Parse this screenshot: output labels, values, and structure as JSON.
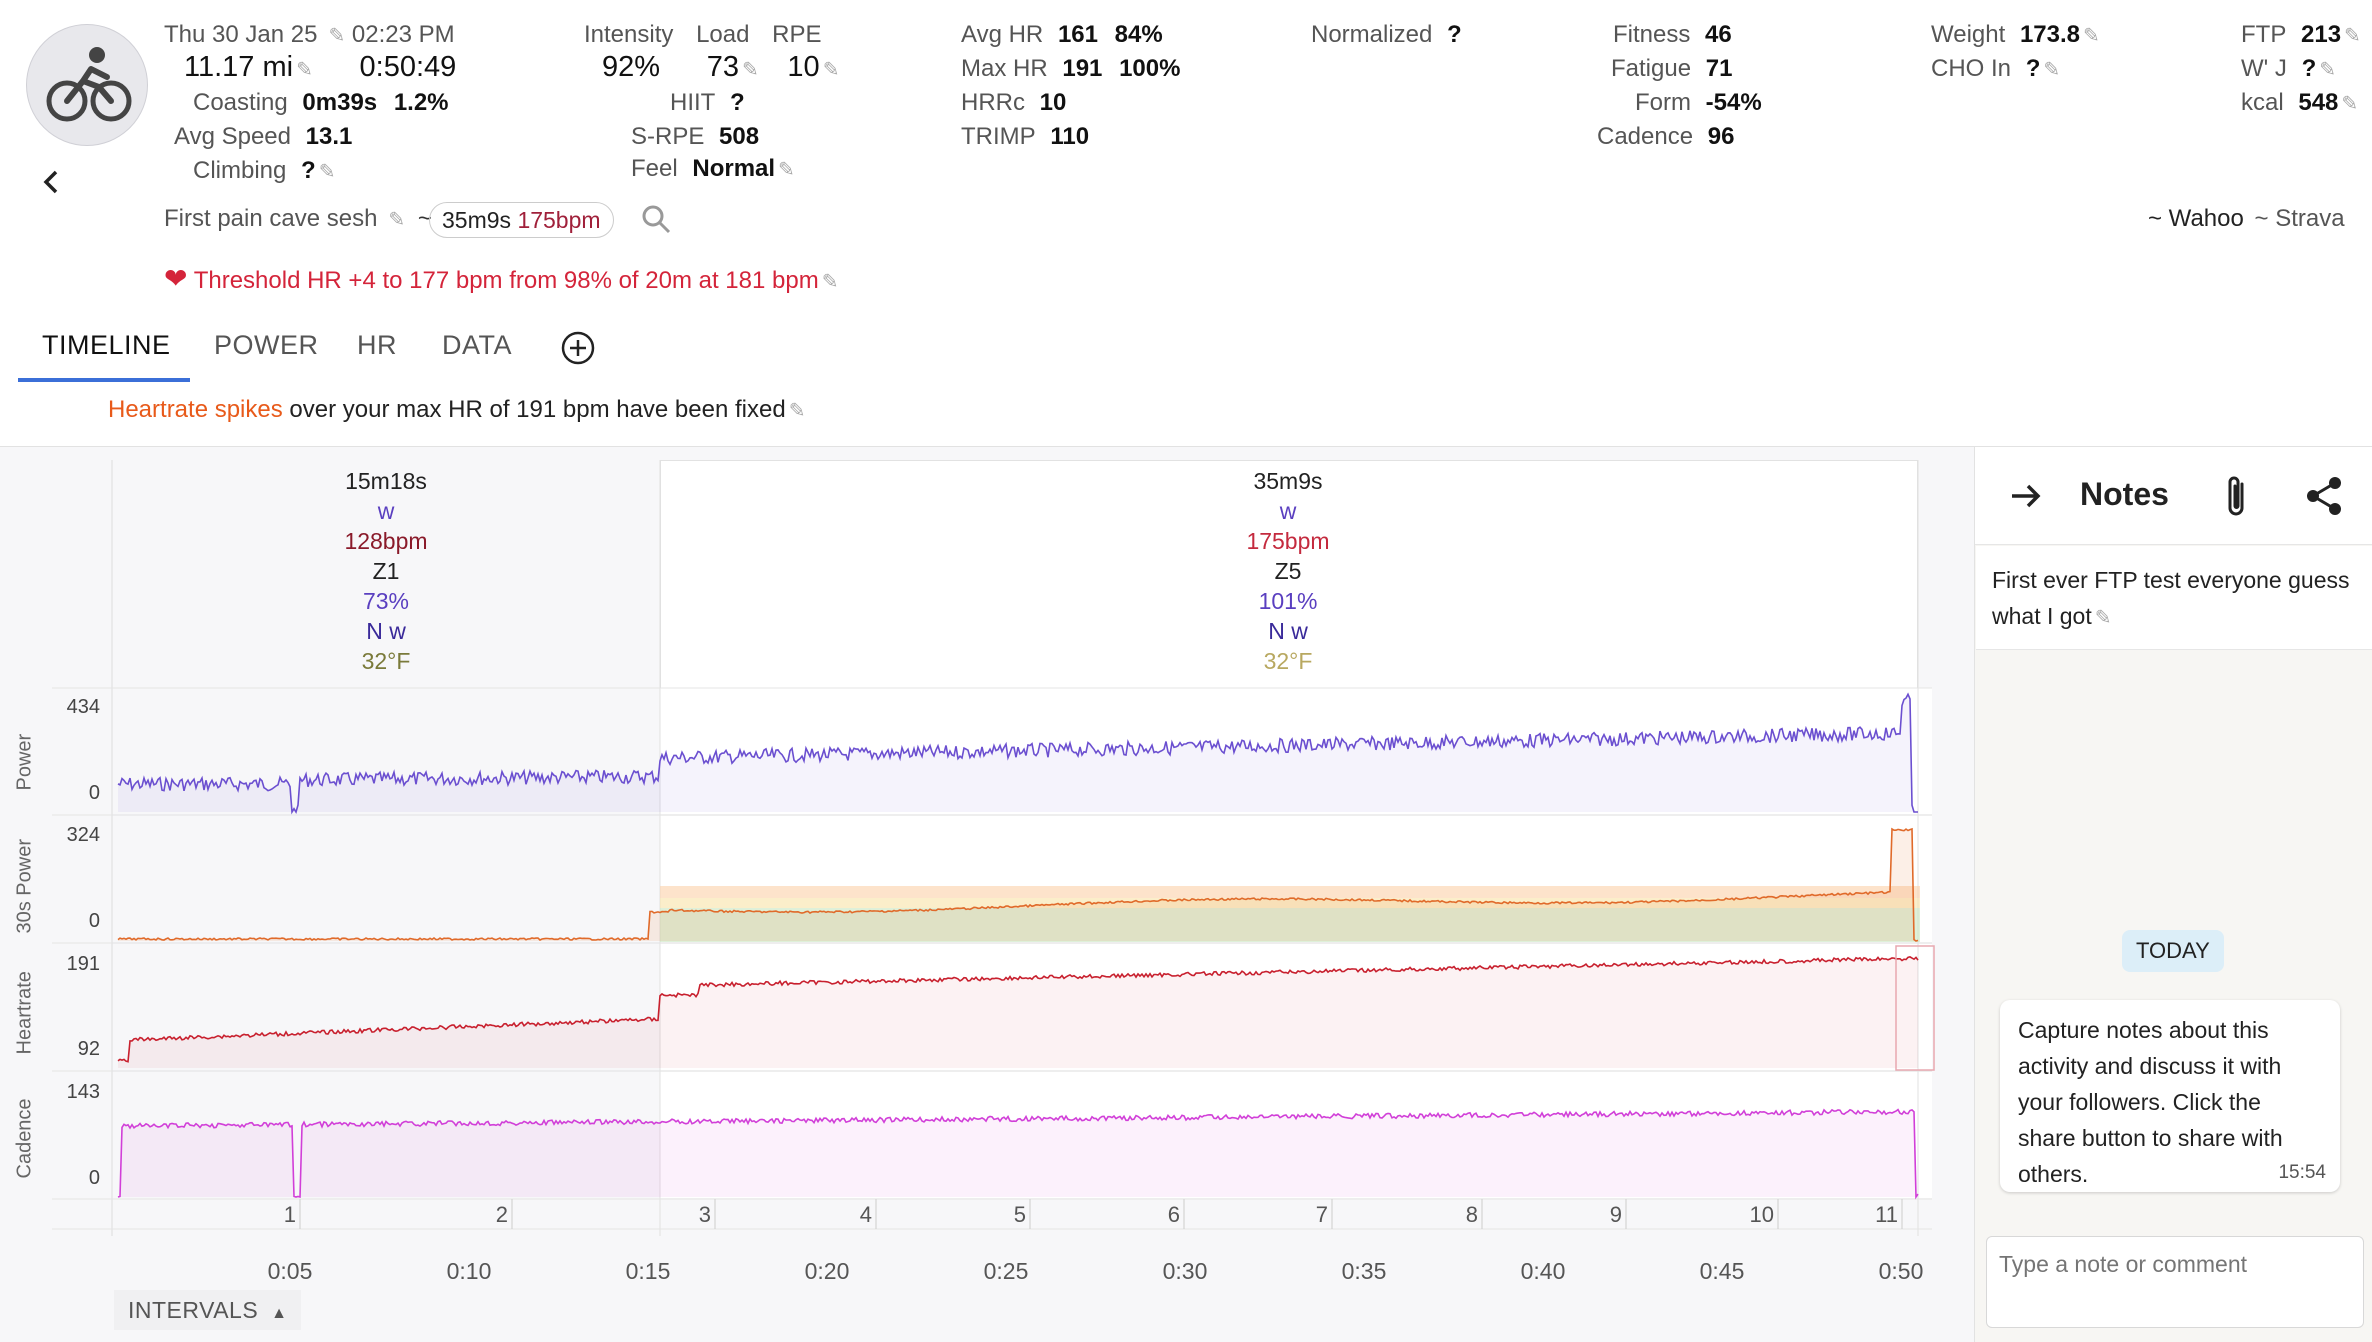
{
  "header": {
    "date": "Thu 30 Jan 25",
    "time": "02:23 PM",
    "distance": "11.17 mi",
    "duration": "0:50:49",
    "coasting_label": "Coasting",
    "coasting_value": "0m39s",
    "coasting_pct": "1.2%",
    "avg_speed_label": "Avg Speed",
    "avg_speed_value": "13.1",
    "climbing_label": "Climbing",
    "climbing_value": "?",
    "intensity_label": "Intensity",
    "intensity_value": "92%",
    "load_label": "Load",
    "load_value": "73",
    "rpe_label": "RPE",
    "rpe_value": "10",
    "hiit_label": "HIIT",
    "hiit_value": "?",
    "srpe_label": "S-RPE",
    "srpe_value": "508",
    "feel_label": "Feel",
    "feel_value": "Normal",
    "avg_hr_label": "Avg HR",
    "avg_hr_value": "161",
    "avg_hr_pct": "84%",
    "max_hr_label": "Max HR",
    "max_hr_value": "191",
    "max_hr_pct": "100%",
    "hrrc_label": "HRRc",
    "hrrc_value": "10",
    "trimp_label": "TRIMP",
    "trimp_value": "110",
    "normalized_label": "Normalized",
    "normalized_value": "?",
    "fitness_label": "Fitness",
    "fitness_value": "46",
    "fatigue_label": "Fatigue",
    "fatigue_value": "71",
    "form_label": "Form",
    "form_value": "-54%",
    "cadence_label": "Cadence",
    "cadence_value": "96",
    "weight_label": "Weight",
    "weight_value": "173.8",
    "cho_label": "CHO In",
    "cho_value": "?",
    "ftp_label": "FTP",
    "ftp_value": "213",
    "wj_label": "W' J",
    "wj_value": "?",
    "kcal_label": "kcal",
    "kcal_value": "548"
  },
  "activity": {
    "name": "First pain cave sesh",
    "tilde": "~",
    "best_effort_time": "35m9s",
    "best_effort_hr": "175bpm",
    "source_1": "~ Wahoo",
    "source_2": "~ Strava",
    "threshold_msg": "Threshold HR +4 to 177 bpm from 98% of 20m at 181 bpm"
  },
  "tabs": [
    "TIMELINE",
    "POWER",
    "HR",
    "DATA"
  ],
  "notice": {
    "highlight": "Heartrate spikes",
    "text": "over your max HR of 191 bpm have been fixed"
  },
  "segments": [
    {
      "duration": "15m18s",
      "power": "w",
      "hr": "128bpm",
      "zone": "Z1",
      "pct": "73%",
      "np": "N w",
      "temp": "32°F"
    },
    {
      "duration": "35m9s",
      "power": "w",
      "hr": "175bpm",
      "zone": "Z5",
      "pct": "101%",
      "np": "N w",
      "temp": "32°F"
    }
  ],
  "charts": {
    "power_label": "Power",
    "power_max": "434",
    "power_min": "0",
    "p30_label": "30s Power",
    "p30_max": "324",
    "p30_min": "0",
    "hr_label": "Heartrate",
    "hr_max": "191",
    "hr_min": "92",
    "cad_label": "Cadence",
    "cad_max": "143",
    "cad_min": "0"
  },
  "intervals": [
    "1",
    "2",
    "3",
    "4",
    "5",
    "6",
    "7",
    "8",
    "9",
    "10",
    "11"
  ],
  "x_ticks": [
    "0:05",
    "0:10",
    "0:15",
    "0:20",
    "0:25",
    "0:30",
    "0:35",
    "0:40",
    "0:45",
    "0:50"
  ],
  "intervals_button": "INTERVALS",
  "notes": {
    "title": "Notes",
    "description": "First ever FTP test everyone guess what I got",
    "today": "TODAY",
    "bubble": "Capture notes about this activity and discuss it with your followers. Click the share button to share with others.",
    "bubble_time": "15:54",
    "input_placeholder": "Type a note or comment"
  },
  "colors": {
    "accent": "#3b6fd8",
    "hr_red": "#c8202e",
    "power_purple": "#6b4fd0",
    "cadence_pink": "#d13fd8",
    "notice_orange": "#e85a1a",
    "temp_olive": "#8a8a3a"
  }
}
